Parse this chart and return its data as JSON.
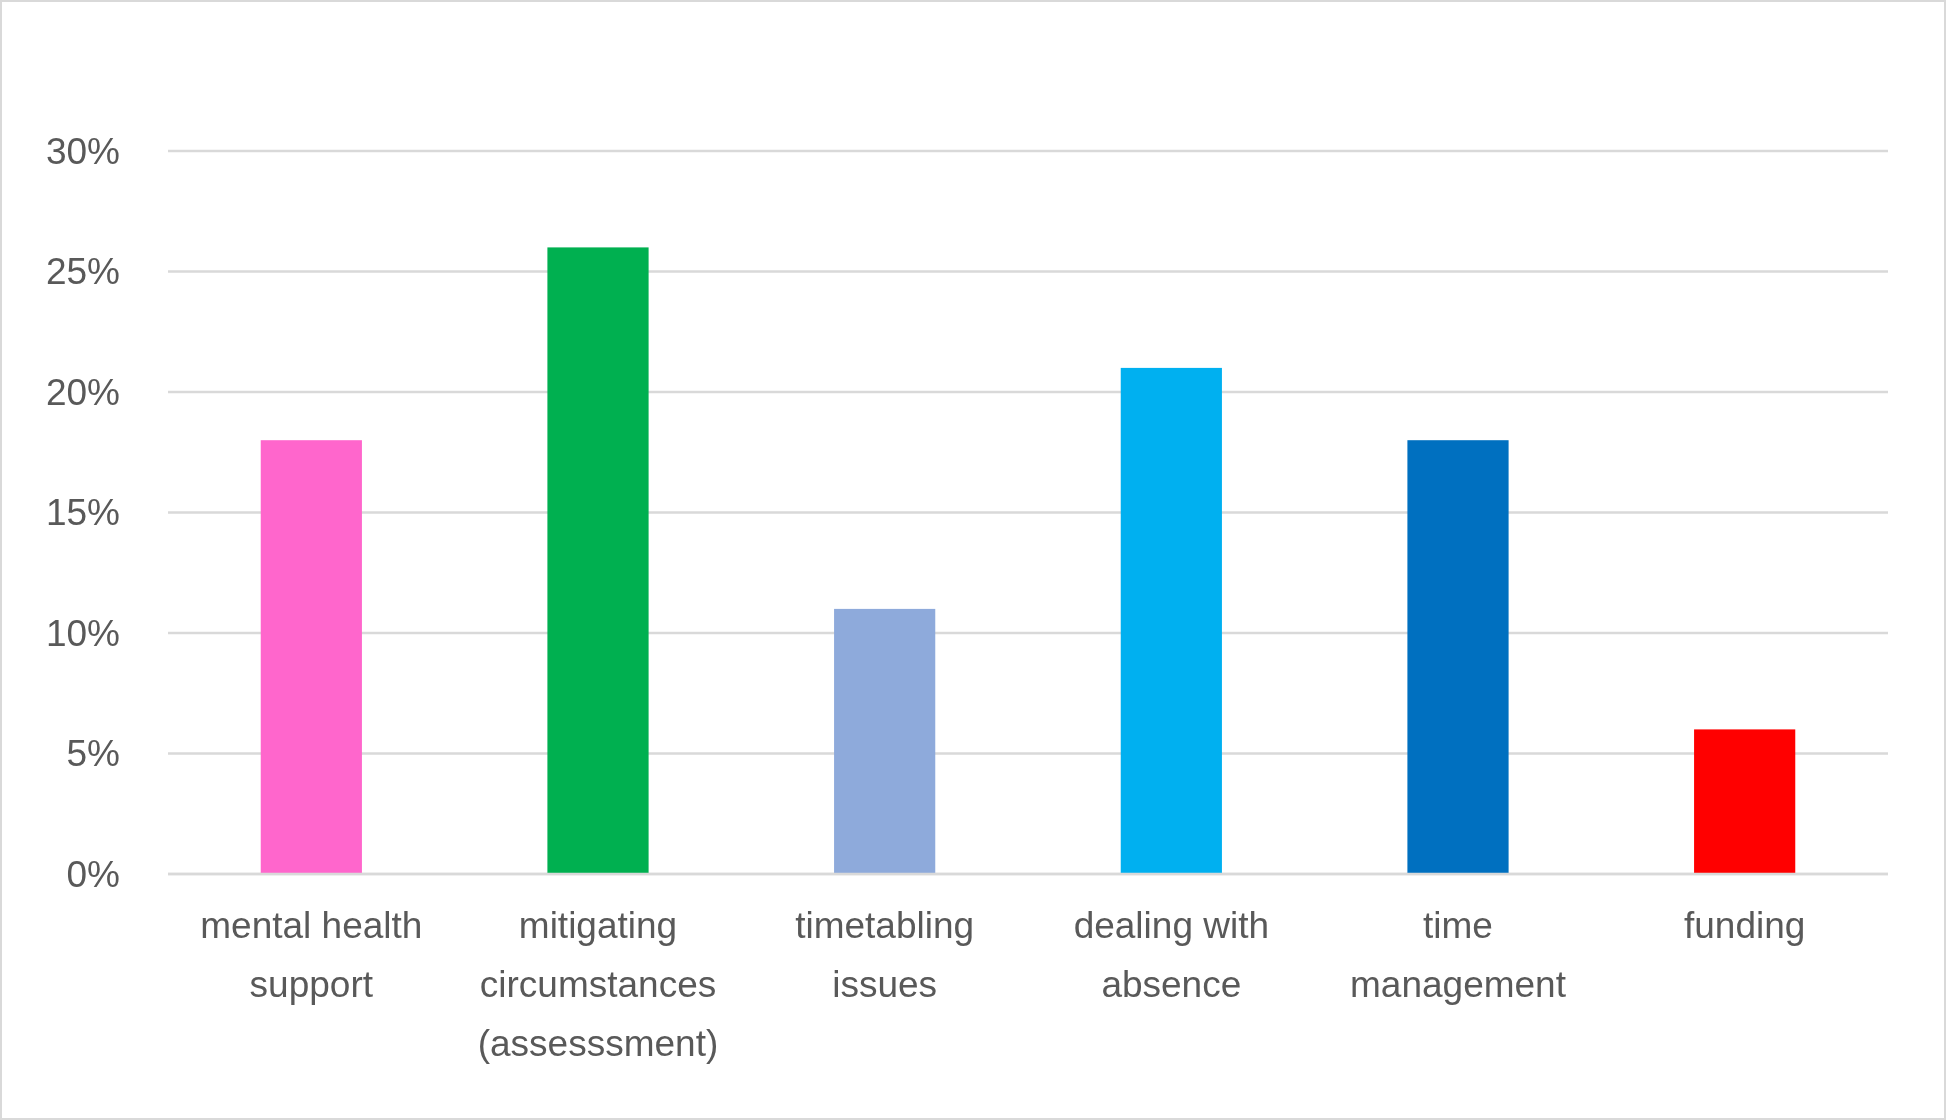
{
  "chart_data": {
    "type": "bar",
    "categories": [
      "mental health support",
      "mitigating circumstances (assesssment)",
      "timetabling issues",
      "dealing with absence",
      "time management",
      "funding"
    ],
    "values": [
      18,
      26,
      11,
      21,
      18,
      6
    ],
    "colors": [
      "#ff66cc",
      "#00b050",
      "#8eaadb",
      "#00b0f0",
      "#0070c0",
      "#ff0000"
    ],
    "ylim": [
      0,
      30
    ],
    "yticks": [
      {
        "value": 0,
        "label": "0%"
      },
      {
        "value": 5,
        "label": "5%"
      },
      {
        "value": 10,
        "label": "10%"
      },
      {
        "value": 15,
        "label": "15%"
      },
      {
        "value": 20,
        "label": "20%"
      },
      {
        "value": 25,
        "label": "25%"
      },
      {
        "value": 30,
        "label": "30%"
      }
    ],
    "grid": "y"
  }
}
